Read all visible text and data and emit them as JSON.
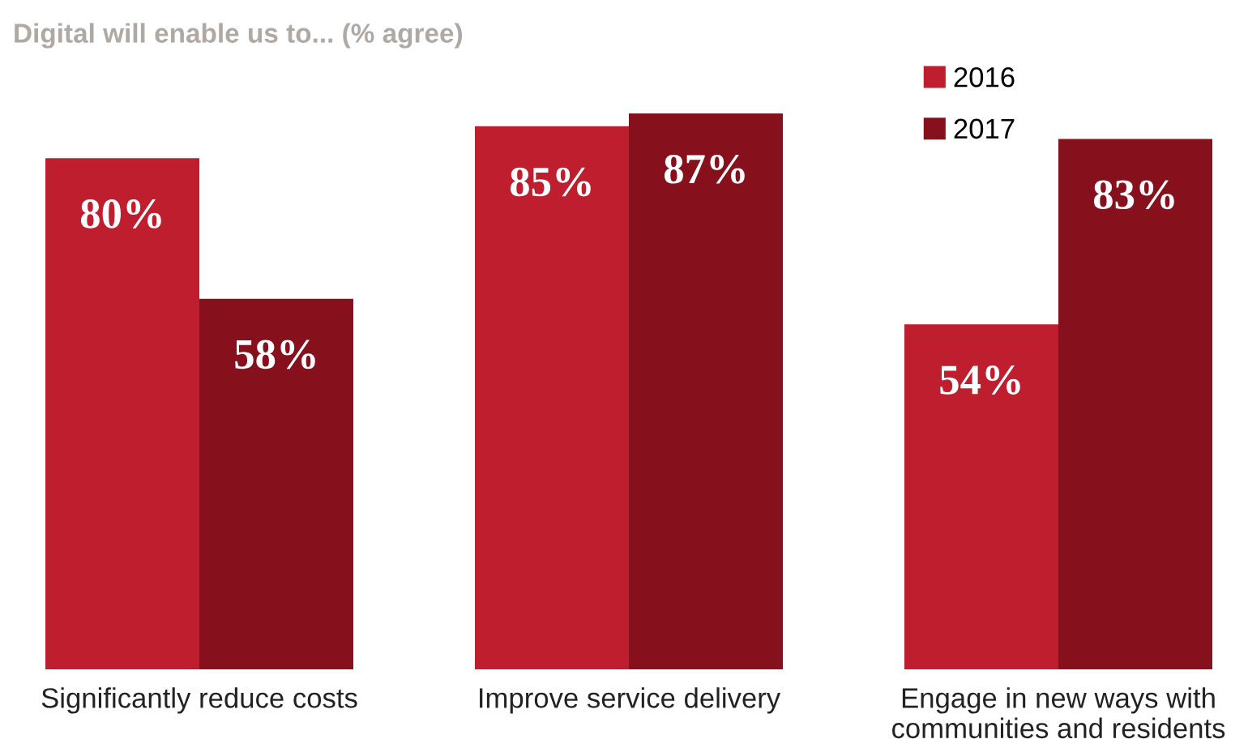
{
  "chart_data": {
    "type": "bar",
    "title": "Digital will enable us to... (% agree)",
    "categories": [
      "Significantly reduce costs",
      "Improve service delivery",
      "Engage in new ways with\ncommunities and residents"
    ],
    "series": [
      {
        "name": "2016",
        "color": "#be1e2d",
        "values": [
          80,
          85,
          54
        ],
        "value_labels": [
          "80%",
          "85%",
          "54%"
        ]
      },
      {
        "name": "2017",
        "color": "#86111c",
        "values": [
          58,
          87,
          83
        ],
        "value_labels": [
          "58%",
          "87%",
          "83%"
        ]
      }
    ],
    "legend": "top right",
    "grid": false
  }
}
